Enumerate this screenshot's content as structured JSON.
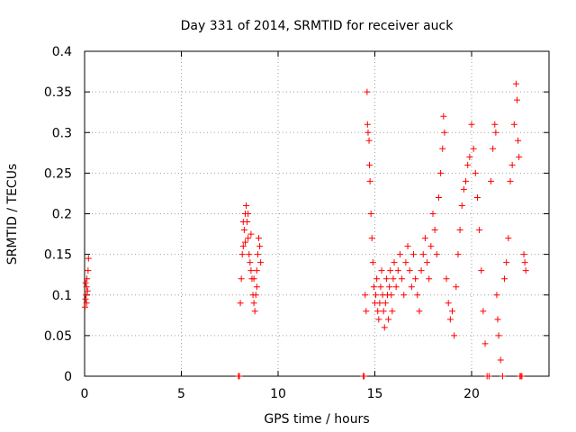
{
  "chart_data": {
    "type": "scatter",
    "title": "Day 331 of 2014, SRMTID for receiver auck",
    "xlabel": "GPS time / hours",
    "ylabel": "SRMTID / TECUs",
    "xlim": [
      0,
      24
    ],
    "ylim": [
      0,
      0.4
    ],
    "xticks": [
      0,
      5,
      10,
      15,
      20
    ],
    "xtick_labels": [
      "0",
      "5",
      "10",
      "15",
      "20"
    ],
    "yticks": [
      0,
      0.05,
      0.1,
      0.15,
      0.2,
      0.25,
      0.3,
      0.35,
      0.4
    ],
    "ytick_labels": [
      "0",
      "0.05",
      "0.1",
      "0.15",
      "0.2",
      "0.25",
      "0.3",
      "0.35",
      "0.4"
    ],
    "grid": true,
    "marker": "+",
    "series": [
      {
        "name": "SRMTID",
        "color": "#ff0000",
        "points": [
          [
            0.02,
            0.085
          ],
          [
            0.05,
            0.095
          ],
          [
            0.08,
            0.1
          ],
          [
            0.1,
            0.11
          ],
          [
            0.12,
            0.12
          ],
          [
            0.15,
            0.105
          ],
          [
            0.18,
            0.13
          ],
          [
            0.2,
            0.145
          ],
          [
            0.05,
            0.115
          ],
          [
            0.1,
            0.09
          ],
          [
            7.95,
            0.0
          ],
          [
            8.0,
            0.0
          ],
          [
            8.05,
            0.09
          ],
          [
            8.1,
            0.12
          ],
          [
            8.15,
            0.15
          ],
          [
            8.2,
            0.16
          ],
          [
            8.25,
            0.18
          ],
          [
            8.3,
            0.2
          ],
          [
            8.35,
            0.21
          ],
          [
            8.4,
            0.19
          ],
          [
            8.45,
            0.17
          ],
          [
            8.5,
            0.15
          ],
          [
            8.55,
            0.14
          ],
          [
            8.6,
            0.13
          ],
          [
            8.65,
            0.12
          ],
          [
            8.7,
            0.1
          ],
          [
            8.75,
            0.09
          ],
          [
            8.8,
            0.08
          ],
          [
            8.85,
            0.1
          ],
          [
            8.9,
            0.13
          ],
          [
            8.95,
            0.15
          ],
          [
            9.0,
            0.17
          ],
          [
            9.05,
            0.16
          ],
          [
            9.1,
            0.14
          ],
          [
            8.2,
            0.19
          ],
          [
            8.3,
            0.165
          ],
          [
            8.45,
            0.2
          ],
          [
            8.6,
            0.175
          ],
          [
            8.75,
            0.12
          ],
          [
            8.9,
            0.11
          ],
          [
            14.4,
            0.0
          ],
          [
            14.45,
            0.0
          ],
          [
            14.5,
            0.1
          ],
          [
            14.55,
            0.08
          ],
          [
            14.6,
            0.35
          ],
          [
            14.62,
            0.31
          ],
          [
            14.65,
            0.3
          ],
          [
            14.7,
            0.29
          ],
          [
            14.72,
            0.26
          ],
          [
            14.75,
            0.24
          ],
          [
            14.8,
            0.2
          ],
          [
            14.85,
            0.17
          ],
          [
            14.9,
            0.14
          ],
          [
            14.95,
            0.11
          ],
          [
            15.0,
            0.09
          ],
          [
            15.05,
            0.1
          ],
          [
            15.1,
            0.12
          ],
          [
            15.15,
            0.08
          ],
          [
            15.2,
            0.07
          ],
          [
            15.25,
            0.09
          ],
          [
            15.3,
            0.11
          ],
          [
            15.35,
            0.13
          ],
          [
            15.4,
            0.1
          ],
          [
            15.45,
            0.08
          ],
          [
            15.5,
            0.06
          ],
          [
            15.55,
            0.09
          ],
          [
            15.6,
            0.12
          ],
          [
            15.65,
            0.1
          ],
          [
            15.7,
            0.07
          ],
          [
            15.75,
            0.11
          ],
          [
            15.8,
            0.13
          ],
          [
            15.85,
            0.1
          ],
          [
            15.9,
            0.08
          ],
          [
            15.95,
            0.12
          ],
          [
            16.0,
            0.14
          ],
          [
            16.1,
            0.11
          ],
          [
            16.2,
            0.13
          ],
          [
            16.3,
            0.15
          ],
          [
            16.4,
            0.12
          ],
          [
            16.5,
            0.1
          ],
          [
            16.6,
            0.14
          ],
          [
            16.7,
            0.16
          ],
          [
            16.8,
            0.13
          ],
          [
            16.9,
            0.11
          ],
          [
            17.0,
            0.15
          ],
          [
            17.1,
            0.12
          ],
          [
            17.2,
            0.1
          ],
          [
            17.3,
            0.08
          ],
          [
            17.4,
            0.13
          ],
          [
            17.5,
            0.15
          ],
          [
            17.6,
            0.17
          ],
          [
            17.7,
            0.14
          ],
          [
            17.8,
            0.12
          ],
          [
            17.9,
            0.16
          ],
          [
            18.0,
            0.2
          ],
          [
            18.1,
            0.18
          ],
          [
            18.2,
            0.15
          ],
          [
            18.3,
            0.22
          ],
          [
            18.4,
            0.25
          ],
          [
            18.5,
            0.28
          ],
          [
            18.55,
            0.32
          ],
          [
            18.6,
            0.3
          ],
          [
            18.7,
            0.12
          ],
          [
            18.8,
            0.09
          ],
          [
            18.9,
            0.07
          ],
          [
            19.0,
            0.08
          ],
          [
            19.1,
            0.05
          ],
          [
            19.2,
            0.11
          ],
          [
            19.3,
            0.15
          ],
          [
            19.4,
            0.18
          ],
          [
            19.5,
            0.21
          ],
          [
            19.6,
            0.23
          ],
          [
            19.7,
            0.24
          ],
          [
            19.8,
            0.26
          ],
          [
            19.9,
            0.27
          ],
          [
            20.0,
            0.31
          ],
          [
            20.1,
            0.28
          ],
          [
            20.2,
            0.25
          ],
          [
            20.3,
            0.22
          ],
          [
            20.4,
            0.18
          ],
          [
            20.5,
            0.13
          ],
          [
            20.6,
            0.08
          ],
          [
            20.7,
            0.04
          ],
          [
            20.8,
            0.0
          ],
          [
            20.9,
            0.0
          ],
          [
            21.0,
            0.24
          ],
          [
            21.1,
            0.28
          ],
          [
            21.2,
            0.31
          ],
          [
            21.25,
            0.3
          ],
          [
            21.3,
            0.1
          ],
          [
            21.35,
            0.07
          ],
          [
            21.4,
            0.05
          ],
          [
            21.5,
            0.02
          ],
          [
            21.6,
            0.0
          ],
          [
            21.7,
            0.12
          ],
          [
            21.8,
            0.14
          ],
          [
            21.9,
            0.17
          ],
          [
            22.0,
            0.24
          ],
          [
            22.1,
            0.26
          ],
          [
            22.2,
            0.31
          ],
          [
            22.3,
            0.36
          ],
          [
            22.35,
            0.34
          ],
          [
            22.4,
            0.29
          ],
          [
            22.45,
            0.27
          ],
          [
            22.5,
            0.0
          ],
          [
            22.55,
            0.0
          ],
          [
            22.6,
            0.0
          ],
          [
            22.7,
            0.15
          ],
          [
            22.75,
            0.14
          ],
          [
            22.8,
            0.13
          ]
        ]
      }
    ]
  }
}
